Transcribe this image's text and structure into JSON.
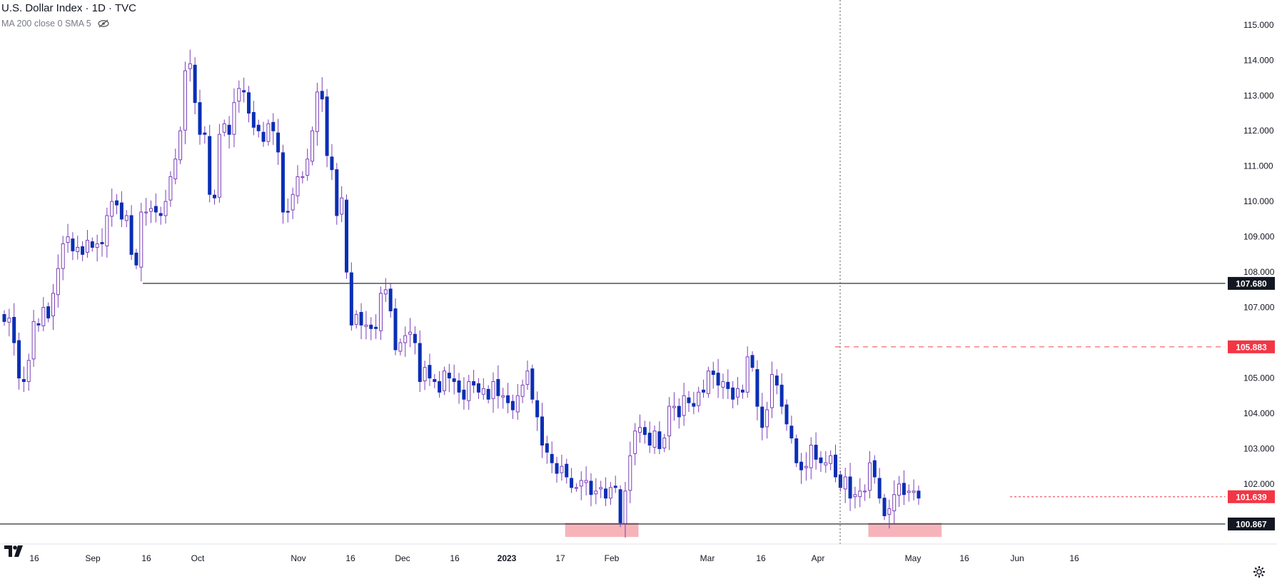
{
  "header": {
    "title": "U.S. Dollar Index · 1D · TVC",
    "indicator": "MA 200 close 0 SMA 5"
  },
  "icons": {
    "visibility": "eye-crossed-icon",
    "logo": "tradingview-logo-icon",
    "settings": "gear-icon"
  },
  "colors": {
    "up": "#ffffff",
    "up_border": "#7b3fb8",
    "down": "#0a2fb5",
    "wick": "#7b3fb8",
    "support_zone": "#f4a7ae",
    "dashed": "#f05a64",
    "label_dark": "#131722",
    "label_red": "#f23645"
  },
  "chart_data": {
    "type": "candlestick",
    "title": "U.S. Dollar Index · 1D · TVC",
    "ylim": [
      100.3,
      115.3
    ],
    "y_ticks": [
      "115.000",
      "114.000",
      "113.000",
      "112.000",
      "111.000",
      "110.000",
      "109.000",
      "108.000",
      "107.000",
      "105.000",
      "104.000",
      "103.000",
      "102.000"
    ],
    "x_ticks": [
      "16",
      "Sep",
      "16",
      "Oct",
      "Nov",
      "16",
      "Dec",
      "16",
      "2023",
      "17",
      "Feb",
      "Mar",
      "16",
      "Apr",
      "May",
      "16",
      "Jun",
      "16"
    ],
    "horizontal_levels": [
      {
        "value": 107.68,
        "label": "107.680",
        "style": "solid"
      },
      {
        "value": 100.867,
        "label": "100.867",
        "style": "solid"
      },
      {
        "value": 105.883,
        "label": "105.883",
        "style": "dashed"
      },
      {
        "value": 101.639,
        "label": "101.639",
        "style": "dotted"
      }
    ],
    "closes": [
      106.6,
      106.7,
      106.0,
      105.0,
      104.9,
      105.5,
      106.6,
      106.5,
      107.0,
      106.7,
      107.4,
      108.1,
      108.8,
      109.0,
      108.6,
      108.7,
      108.5,
      108.9,
      108.7,
      108.8,
      108.8,
      109.6,
      110.0,
      109.9,
      109.5,
      109.6,
      108.5,
      108.2,
      109.7,
      109.7,
      109.8,
      109.7,
      109.6,
      110.0,
      110.7,
      111.2,
      112.0,
      113.7,
      113.9,
      112.8,
      111.9,
      111.9,
      110.2,
      110.1,
      111.9,
      112.2,
      111.9,
      112.8,
      113.2,
      113.1,
      112.5,
      112.1,
      112.0,
      111.7,
      112.2,
      112.0,
      111.4,
      109.7,
      109.7,
      110.2,
      110.7,
      110.7,
      111.2,
      112.0,
      113.1,
      112.9,
      111.3,
      110.9,
      109.6,
      110.1,
      108.0,
      106.5,
      106.8,
      106.5,
      106.5,
      106.4,
      106.4,
      107.4,
      107.5,
      106.9,
      105.8,
      106.0,
      106.2,
      106.3,
      106.0,
      104.9,
      105.3,
      105.0,
      104.9,
      104.6,
      105.2,
      105.0,
      104.9,
      104.6,
      104.4,
      104.9,
      104.8,
      104.6,
      104.7,
      104.4,
      104.9,
      104.5,
      104.5,
      104.3,
      104.1,
      104.5,
      104.8,
      105.2,
      104.4,
      103.9,
      103.1,
      102.9,
      102.6,
      102.3,
      102.5,
      102.2,
      101.9,
      101.9,
      102.1,
      102.1,
      101.7,
      101.8,
      101.9,
      101.6,
      101.9,
      101.9,
      100.9,
      101.8,
      102.8,
      103.5,
      103.6,
      103.4,
      103.1,
      103.5,
      103.0,
      103.3,
      104.2,
      104.2,
      103.9,
      104.5,
      104.3,
      104.2,
      104.6,
      104.6,
      105.2,
      105.1,
      104.8,
      104.9,
      104.7,
      104.4,
      104.7,
      104.6,
      105.6,
      105.3,
      104.2,
      103.6,
      104.1,
      105.1,
      104.8,
      104.2,
      103.7,
      103.3,
      102.6,
      102.4,
      102.5,
      103.1,
      102.7,
      102.6,
      102.6,
      102.8,
      102.2,
      101.9,
      102.2,
      101.6,
      101.7,
      101.8,
      101.8,
      102.6,
      102.2,
      101.6,
      101.1,
      101.3,
      101.7,
      102.0,
      101.7,
      101.8,
      101.8,
      101.6
    ],
    "support_zones": [
      {
        "from_index": 115,
        "to_index": 130,
        "low": 100.5,
        "high": 100.9
      },
      {
        "from_index": 177,
        "to_index": 192,
        "low": 100.5,
        "high": 100.9
      }
    ]
  }
}
